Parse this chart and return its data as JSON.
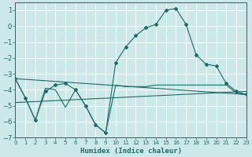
{
  "xlabel": "Humidex (Indice chaleur)",
  "bg_color": "#cde8e8",
  "grid_color": "#ffffff",
  "line_color": "#1a6b6b",
  "x_min": 0,
  "x_max": 23,
  "y_min": -7,
  "y_max": 1.5,
  "series1_x": [
    0,
    1,
    2,
    3,
    4,
    5,
    6,
    7,
    8,
    9,
    10,
    11,
    12,
    13,
    14,
    15,
    16,
    17,
    18,
    19,
    20,
    21,
    22,
    23
  ],
  "series1_y": [
    -3.3,
    -4.5,
    -5.9,
    -4.1,
    -3.7,
    -3.6,
    -4.0,
    -5.0,
    -6.2,
    -6.7,
    -2.3,
    -1.3,
    -0.6,
    -0.1,
    0.1,
    1.0,
    1.1,
    0.1,
    -1.8,
    -2.4,
    -2.5,
    -3.6,
    -4.1,
    -4.3
  ],
  "series2_x": [
    0,
    1,
    2,
    3,
    4,
    5,
    6,
    7,
    8,
    9,
    10,
    11,
    12,
    13,
    14,
    15,
    16,
    17,
    18,
    19,
    20,
    21,
    22,
    23
  ],
  "series2_y": [
    -3.3,
    -4.5,
    -5.9,
    -3.9,
    -4.0,
    -5.1,
    -4.0,
    -5.0,
    -6.2,
    -6.7,
    -3.7,
    -3.8,
    -3.8,
    -3.8,
    -3.7,
    -3.7,
    -3.7,
    -3.7,
    -3.7,
    -3.7,
    -3.7,
    -3.7,
    -4.2,
    -4.3
  ],
  "series3_x": [
    0,
    23
  ],
  "series3_y": [
    -4.8,
    -4.1
  ],
  "series4_x": [
    0,
    23
  ],
  "series4_y": [
    -3.3,
    -4.3
  ]
}
